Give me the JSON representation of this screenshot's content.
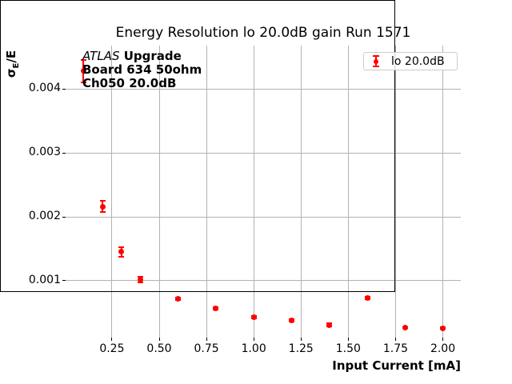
{
  "title": "Energy Resolution lo 20.0dB gain Run 1571",
  "axes": {
    "xlabel": "Input Current [mA]",
    "ylabel_sigma": "σ",
    "ylabel_sub": "E",
    "ylabel_rest": "/E"
  },
  "legend": {
    "label": "lo 20.0dB"
  },
  "annotation": {
    "experiment": "ATLAS",
    "line1_rest": " Upgrade",
    "line2": "Board 634 50ohm",
    "line3": "Ch050 20.0dB"
  },
  "chart_data": {
    "type": "scatter",
    "title": "Energy Resolution lo 20.0dB gain Run 1571",
    "xlabel": "Input Current [mA]",
    "ylabel": "sigma_E / E",
    "xlim": [
      0.005,
      2.095
    ],
    "ylim": [
      0.00011,
      0.00468
    ],
    "grid": true,
    "legend_position": "upper right",
    "accent_color": "#ff0000",
    "grid_color": "#b2b2b2",
    "xticks": [
      {
        "v": 0.25,
        "label": "0.25"
      },
      {
        "v": 0.5,
        "label": "0.50"
      },
      {
        "v": 0.75,
        "label": "0.75"
      },
      {
        "v": 1.0,
        "label": "1.00"
      },
      {
        "v": 1.25,
        "label": "1.25"
      },
      {
        "v": 1.5,
        "label": "1.50"
      },
      {
        "v": 1.75,
        "label": "1.75"
      },
      {
        "v": 2.0,
        "label": "2.00"
      }
    ],
    "yticks": [
      {
        "v": 0.001,
        "label": "0.001"
      },
      {
        "v": 0.002,
        "label": "0.002"
      },
      {
        "v": 0.003,
        "label": "0.003"
      },
      {
        "v": 0.004,
        "label": "0.004"
      }
    ],
    "series": [
      {
        "name": "lo 20.0dB",
        "color": "#ff0000",
        "marker": "circle",
        "points": [
          {
            "x": 0.1,
            "y": 0.00428,
            "yerr": 0.00017
          },
          {
            "x": 0.2,
            "y": 0.00216,
            "yerr": 9e-05
          },
          {
            "x": 0.3,
            "y": 0.00145,
            "yerr": 8e-05
          },
          {
            "x": 0.4,
            "y": 0.00102,
            "yerr": 4e-05
          },
          {
            "x": 0.6,
            "y": 0.00072,
            "yerr": 2e-05
          },
          {
            "x": 0.8,
            "y": 0.00057,
            "yerr": 2e-05
          },
          {
            "x": 1.0,
            "y": 0.00043,
            "yerr": 2e-05
          },
          {
            "x": 1.2,
            "y": 0.00038,
            "yerr": 2e-05
          },
          {
            "x": 1.4,
            "y": 0.00031,
            "yerr": 2e-05
          },
          {
            "x": 1.6,
            "y": 0.00073,
            "yerr": 2e-05
          },
          {
            "x": 1.8,
            "y": 0.000265,
            "yerr": 1e-05
          },
          {
            "x": 2.0,
            "y": 0.00026,
            "yerr": 1e-05
          }
        ]
      }
    ]
  }
}
